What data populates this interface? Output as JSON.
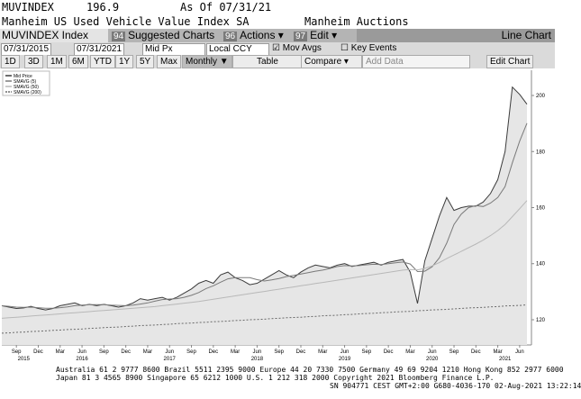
{
  "header": {
    "ticker": "MUVINDEX",
    "price": 196.9,
    "as_of": "As Of 07/31/21",
    "name": "Manheim US Used Vehicle Value Index SA",
    "source": "Manheim Auctions"
  },
  "toolbar": {
    "security": "MUVINDEX Index",
    "suggested_key": "94",
    "suggested": "Suggested Charts",
    "actions_key": "96",
    "actions": "Actions ▾",
    "edit_key": "97",
    "edit": "Edit ▾",
    "view": "Line Chart"
  },
  "controls": {
    "start": "07/31/2015",
    "end": "07/31/2021",
    "field": "Mid Px",
    "currency": "Local CCY",
    "mov_avgs": "Mov Avgs",
    "key_events": "Key Events",
    "periods": [
      "1D",
      "3D",
      "1M",
      "6M",
      "YTD",
      "1Y",
      "5Y",
      "Max"
    ],
    "frequency": "Monthly ▼",
    "table": "Table",
    "compare": "Compare ▾",
    "add_data": "Add Data",
    "edit_chart": "Edit Chart"
  },
  "chart_data": {
    "type": "line",
    "categories": [
      null,
      null,
      "Sep",
      null,
      null,
      "Dec",
      null,
      null,
      "Mar",
      null,
      null,
      "Jun",
      null,
      null,
      "Sep",
      null,
      null,
      "Dec",
      null,
      null,
      "Mar",
      null,
      null,
      "Jun",
      null,
      null,
      "Sep",
      null,
      null,
      "Dec",
      null,
      null,
      "Mar",
      null,
      null,
      "Jun",
      null,
      null,
      "Sep",
      null,
      null,
      "Dec",
      null,
      null,
      "Mar",
      null,
      null,
      "Jun",
      null,
      null,
      "Sep",
      null,
      null,
      "Dec",
      null,
      null,
      "Mar",
      null,
      null,
      "Jun",
      null,
      null,
      "Sep",
      null,
      null,
      "Dec",
      null,
      null,
      "Mar",
      null,
      null,
      "Jun",
      null
    ],
    "year_labels": [
      {
        "value": 3,
        "label": "2015"
      },
      {
        "value": 11,
        "label": "2016"
      },
      {
        "value": 23,
        "label": "2017"
      },
      {
        "value": 35,
        "label": "2018"
      },
      {
        "value": 47,
        "label": "2019"
      },
      {
        "value": 59,
        "label": "2020"
      },
      {
        "value": 69,
        "label": "2021"
      }
    ],
    "series": [
      {
        "name": "Mid Price",
        "color": "#3c3c3c",
        "area_color": "#e6e6e6",
        "values": [
          125,
          124.5,
          124,
          124.2,
          124.8,
          124,
          123.5,
          124,
          125,
          125.5,
          126,
          125,
          125.5,
          125,
          125.5,
          125,
          124.5,
          125,
          126,
          127.5,
          127,
          127.5,
          128,
          127,
          128,
          129.5,
          131,
          133,
          134,
          133,
          136,
          137,
          135,
          134,
          132.5,
          133,
          134.5,
          136,
          137.5,
          136,
          135,
          137,
          138.5,
          139.5,
          139,
          138.5,
          139.5,
          140,
          139,
          139.5,
          140,
          140.5,
          139.5,
          140.5,
          141,
          141.5,
          137,
          125.8,
          141,
          149,
          157,
          163.6,
          159,
          160,
          160.5,
          160.5,
          162,
          165,
          170,
          180,
          203,
          200.4,
          196.9
        ]
      },
      {
        "name": "SMAVG (5)",
        "color": "#7a7a7a",
        "values": [
          125,
          124.8,
          124.5,
          124.4,
          124.5,
          124.3,
          124.1,
          124.1,
          124.3,
          124.6,
          125,
          125.2,
          125.4,
          125.4,
          125.4,
          125.2,
          125.1,
          125,
          125.2,
          125.6,
          126,
          126.6,
          127.2,
          127.4,
          127.5,
          128,
          128.7,
          129.7,
          131.1,
          132.1,
          133.4,
          134.6,
          135,
          135,
          135,
          134.3,
          133.8,
          134.2,
          134.7,
          135.4,
          135.8,
          136.3,
          136.8,
          137.3,
          137.7,
          138.3,
          139,
          139.3,
          139.2,
          139.3,
          139.6,
          139.8,
          139.7,
          140,
          140.3,
          140.6,
          139.9,
          137.2,
          137.3,
          138.9,
          142.1,
          147.3,
          154,
          157.7,
          160,
          160.7,
          160.4,
          161.6,
          163.6,
          167.5,
          176,
          183.7,
          190.1
        ]
      },
      {
        "name": "SMAVG (50)",
        "color": "#b8b8b8",
        "values": [
          120.5,
          120.7,
          120.9,
          121.1,
          121.3,
          121.5,
          121.7,
          121.9,
          122.1,
          122.3,
          122.5,
          122.7,
          122.9,
          123.1,
          123.3,
          123.5,
          123.7,
          123.9,
          124.1,
          124.3,
          124.5,
          124.7,
          125.0,
          125.3,
          125.6,
          125.9,
          126.2,
          126.5,
          126.9,
          127.3,
          127.7,
          128.1,
          128.5,
          128.9,
          129.3,
          129.7,
          130.1,
          130.5,
          130.9,
          131.3,
          131.7,
          132.1,
          132.5,
          132.9,
          133.3,
          133.7,
          134.1,
          134.5,
          134.9,
          135.3,
          135.7,
          136.1,
          136.5,
          136.9,
          137.3,
          137.7,
          137.9,
          137.8,
          138.3,
          139.2,
          140.4,
          141.8,
          143.1,
          144.4,
          145.7,
          147.0,
          148.4,
          150.0,
          151.8,
          154.0,
          156.8,
          159.6,
          162.5
        ]
      },
      {
        "name": "SMAVG (200)",
        "color": "#6a6a6a",
        "dashed": true,
        "values": [
          115.2,
          115.3,
          115.5,
          115.6,
          115.8,
          115.9,
          116.0,
          116.2,
          116.3,
          116.5,
          116.6,
          116.7,
          116.9,
          117.0,
          117.2,
          117.3,
          117.4,
          117.6,
          117.7,
          117.9,
          118.0,
          118.1,
          118.3,
          118.4,
          118.6,
          118.7,
          118.8,
          119.0,
          119.1,
          119.3,
          119.4,
          119.5,
          119.7,
          119.8,
          120.0,
          120.1,
          120.2,
          120.4,
          120.5,
          120.7,
          120.8,
          120.9,
          121.1,
          121.2,
          121.4,
          121.5,
          121.6,
          121.8,
          121.9,
          122.1,
          122.2,
          122.3,
          122.5,
          122.6,
          122.8,
          122.9,
          123.0,
          123.2,
          123.3,
          123.5,
          123.6,
          123.7,
          123.9,
          124.0,
          124.2,
          124.3,
          124.4,
          124.6,
          124.7,
          124.9,
          125.0,
          125.1,
          125.3
        ]
      }
    ],
    "ylim": [
      111,
      209
    ],
    "yticks": [
      120,
      140,
      160,
      180,
      200
    ],
    "y_axis_side": "right",
    "grid": false,
    "legend": "top-left"
  },
  "footer": {
    "lines": [
      "Australia 61 2 9777 8600 Brazil 5511 2395 9000 Europe 44 20 7330 7500 Germany 49 69 9204 1210 Hong Kong 852 2977 6000",
      "Japan 81 3 4565 8900      Singapore 65 6212 1000      U.S. 1 212 318 2000      Copyright 2021 Bloomberg Finance L.P.",
      "SN 904771 CEST GMT+2:00 G680-4036-170 02-Aug-2021 13:22:14"
    ]
  }
}
